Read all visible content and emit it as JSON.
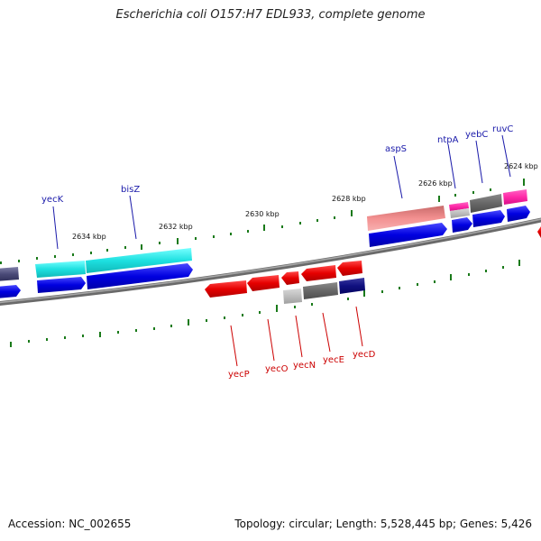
{
  "title": "Escherichia coli O157:H7 EDL933, complete genome",
  "footer": {
    "accession": "Accession: NC_002655",
    "topology": "Topology: circular; Length: 5,528,445 bp; Genes: 5,426"
  },
  "colors": {
    "label_top": "#1a1aaa",
    "label_bottom": "#cc0000",
    "tick": "#1a7a1a",
    "backbone": "#808080"
  },
  "tick_labels": [
    "2624 kbp",
    "2626 kbp",
    "2628 kbp",
    "2630 kbp",
    "2632 kbp",
    "2634 kbp"
  ],
  "gene_labels_top": [
    "ruvC",
    "yebC",
    "ntpA",
    "aspS",
    "bisZ",
    "yecK"
  ],
  "gene_labels_bottom": [
    "yecD",
    "yecE",
    "yecN",
    "yecO",
    "yecP"
  ]
}
